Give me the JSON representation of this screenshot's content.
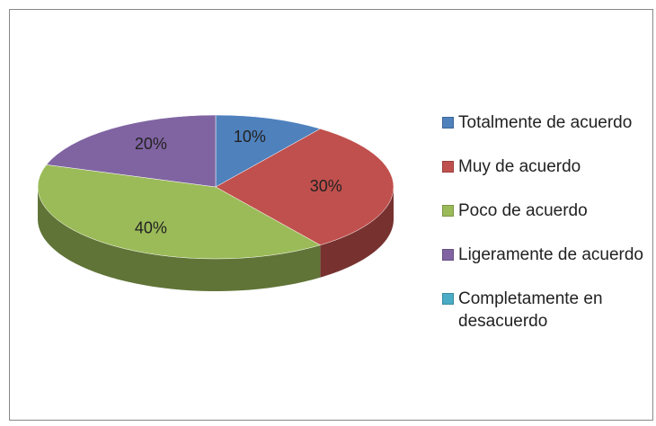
{
  "chart_data": {
    "type": "pie",
    "categories": [
      "Totalmente de acuerdo",
      "Muy de acuerdo",
      "Poco de acuerdo",
      "Ligeramente de acuerdo",
      "Completamente en desacuerdo"
    ],
    "values": [
      10,
      30,
      40,
      20,
      0
    ],
    "value_labels": [
      "10%",
      "30%",
      "40%",
      "20%",
      null
    ],
    "colors": [
      "#4f81bd",
      "#c0504d",
      "#9bbb59",
      "#8064a2",
      "#4bacc6"
    ],
    "legend": "right"
  }
}
